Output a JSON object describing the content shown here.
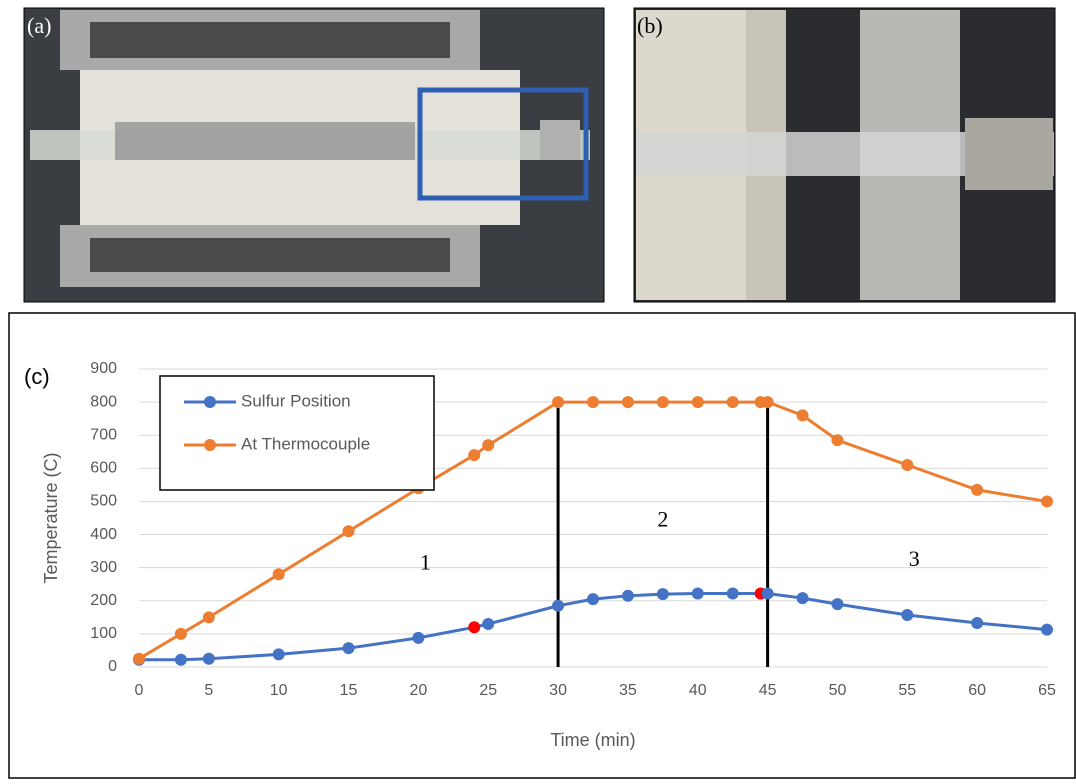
{
  "panels": [
    "(a)",
    "(b)"
  ],
  "chart_data": {
    "type": "line",
    "panel_label": "(c)",
    "x_label": "Time (min)",
    "y_label": "Temperature (C)",
    "x": [
      0,
      3,
      5,
      10,
      15,
      20,
      24,
      25,
      30,
      32.5,
      35,
      37.5,
      40,
      42.5,
      44.5,
      45,
      47.5,
      50,
      55,
      60,
      65
    ],
    "series": [
      {
        "name": "Sulfur Position",
        "color": "#4472c4",
        "values": [
          22,
          22,
          25,
          38,
          57,
          88,
          120,
          130,
          185,
          205,
          215,
          220,
          222,
          222,
          222,
          222,
          208,
          190,
          157,
          133,
          113
        ],
        "point_colors": [
          null,
          null,
          null,
          null,
          null,
          null,
          "#ff0000",
          null,
          null,
          null,
          null,
          null,
          null,
          null,
          "#ff0000",
          null,
          null,
          null,
          null,
          null,
          null
        ]
      },
      {
        "name": "At Thermocouple",
        "color": "#ed7d31",
        "values": [
          25,
          100,
          150,
          280,
          410,
          540,
          640,
          670,
          800,
          800,
          800,
          800,
          800,
          800,
          800,
          800,
          760,
          685,
          610,
          535,
          500
        ]
      }
    ],
    "vlines": [
      30,
      45
    ],
    "annotations": [
      {
        "text": "1",
        "x": 20.5,
        "y": 310
      },
      {
        "text": "2",
        "x": 37.5,
        "y": 440
      },
      {
        "text": "3",
        "x": 55.5,
        "y": 320
      }
    ],
    "xlim": [
      0,
      65
    ],
    "xticks": [
      0,
      5,
      10,
      15,
      20,
      25,
      30,
      35,
      40,
      45,
      50,
      55,
      60,
      65
    ],
    "ylim": [
      0,
      900
    ],
    "yticks": [
      0,
      100,
      200,
      300,
      400,
      500,
      600,
      700,
      800,
      900
    ],
    "grid": true,
    "legend": "upper left"
  }
}
